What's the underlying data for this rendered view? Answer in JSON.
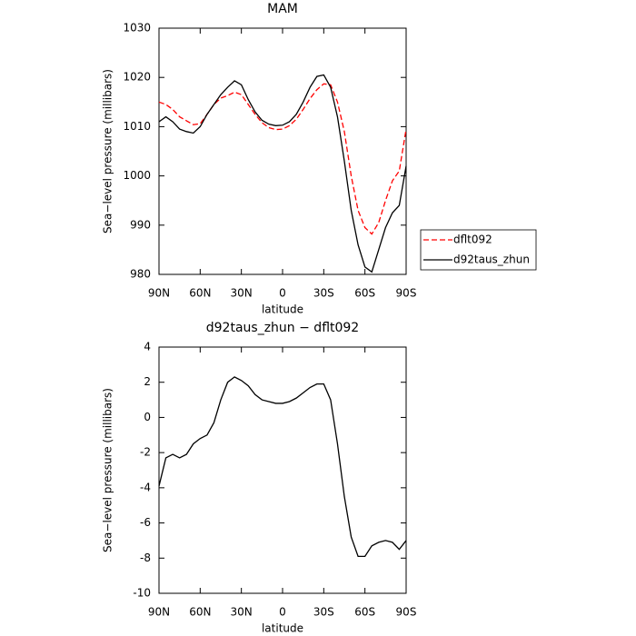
{
  "chart_data": [
    {
      "type": "line",
      "title": "MAM",
      "xlabel": "latitude",
      "ylabel": "Sea−level pressure (millibars)",
      "x": [
        90,
        85,
        80,
        75,
        70,
        65,
        60,
        55,
        50,
        45,
        40,
        35,
        30,
        25,
        20,
        15,
        10,
        5,
        0,
        -5,
        -10,
        -15,
        -20,
        -25,
        -30,
        -35,
        -40,
        -45,
        -50,
        -55,
        -60,
        -65,
        -70,
        -75,
        -80,
        -85,
        -90
      ],
      "series": [
        {
          "name": "dflt092",
          "color": "#ff0000",
          "dash": true,
          "values": [
            1015,
            1014.5,
            1013.5,
            1012,
            1011.2,
            1010.4,
            1010.6,
            1012.5,
            1014.5,
            1015.8,
            1016.3,
            1017,
            1016.5,
            1014.5,
            1012.5,
            1010.8,
            1009.8,
            1009.4,
            1009.5,
            1010.2,
            1011.5,
            1013.5,
            1015.7,
            1017.5,
            1018.7,
            1018.5,
            1015,
            1009,
            1000,
            993,
            989.5,
            988.2,
            990.5,
            995,
            999,
            1001,
            1009.5
          ]
        },
        {
          "name": "d92taus_zhun",
          "color": "#000000",
          "dash": false,
          "values": [
            1011,
            1012,
            1011,
            1009.5,
            1009,
            1008.7,
            1010,
            1012.5,
            1014.5,
            1016.5,
            1018,
            1019.3,
            1018.5,
            1015.5,
            1013,
            1011.3,
            1010.5,
            1010.2,
            1010.3,
            1011,
            1012.5,
            1015,
            1018,
            1020.2,
            1020.5,
            1018,
            1012,
            1003,
            993,
            986,
            981.5,
            980.5,
            985,
            989.5,
            992.5,
            994,
            1002
          ]
        }
      ],
      "xlim": [
        90,
        -90
      ],
      "xticks": [
        {
          "value": 90,
          "label": "90N"
        },
        {
          "value": 60,
          "label": "60N"
        },
        {
          "value": 30,
          "label": "30N"
        },
        0,
        {
          "value": -30,
          "label": "30S"
        },
        {
          "value": -60,
          "label": "60S"
        },
        {
          "value": -90,
          "label": "90S"
        }
      ],
      "ylim": [
        980,
        1030
      ],
      "yticks": [
        980,
        990,
        1000,
        1010,
        1020,
        1030
      ],
      "legend": "right"
    },
    {
      "type": "line",
      "title": "d92taus_zhun − dflt092",
      "xlabel": "latitude",
      "ylabel": "Sea−level pressure (millibars)",
      "x": [
        90,
        85,
        80,
        75,
        70,
        65,
        60,
        55,
        50,
        45,
        40,
        35,
        30,
        25,
        20,
        15,
        10,
        5,
        0,
        -5,
        -10,
        -15,
        -20,
        -25,
        -30,
        -35,
        -40,
        -45,
        -50,
        -55,
        -60,
        -65,
        -70,
        -75,
        -80,
        -85,
        -90
      ],
      "series": [
        {
          "color": "#000000",
          "dash": false,
          "values": [
            -3.9,
            -2.3,
            -2.1,
            -2.3,
            -2.1,
            -1.5,
            -1.2,
            -1.0,
            -0.3,
            1.0,
            2.0,
            2.3,
            2.1,
            1.8,
            1.3,
            1.0,
            0.9,
            0.8,
            0.8,
            0.9,
            1.1,
            1.4,
            1.7,
            1.9,
            1.9,
            1.0,
            -1.5,
            -4.5,
            -6.8,
            -7.9,
            -7.9,
            -7.3,
            -7.1,
            -7.0,
            -7.1,
            -7.5,
            -7.0
          ]
        }
      ],
      "xlim": [
        90,
        -90
      ],
      "xticks": [
        {
          "value": 90,
          "label": "90N"
        },
        {
          "value": 60,
          "label": "60N"
        },
        {
          "value": 30,
          "label": "30N"
        },
        0,
        {
          "value": -30,
          "label": "30S"
        },
        {
          "value": -60,
          "label": "60S"
        },
        {
          "value": -90,
          "label": "90S"
        }
      ],
      "ylim": [
        -10,
        4
      ],
      "yticks": [
        -10,
        -8,
        -6,
        -4,
        -2,
        0,
        2,
        4
      ]
    }
  ]
}
